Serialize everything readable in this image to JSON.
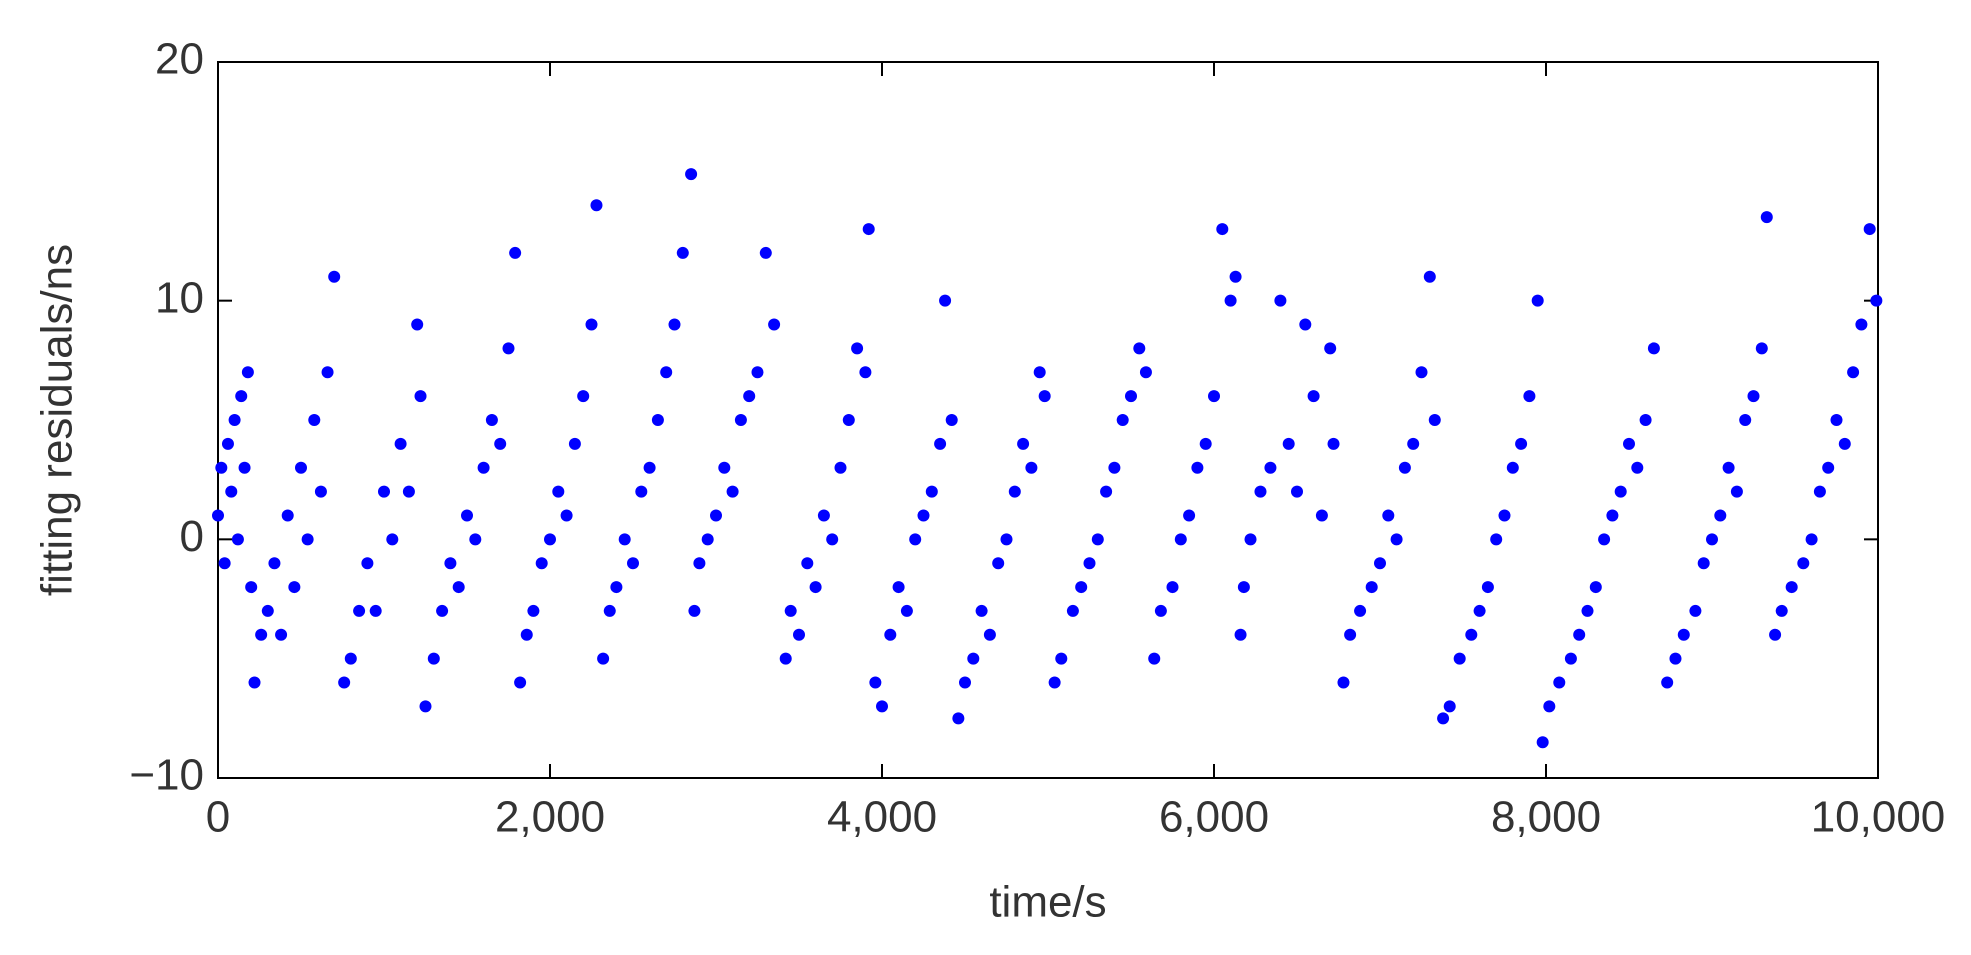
{
  "chart_data": {
    "type": "scatter",
    "xlabel": "time/s",
    "ylabel": "fitting residuals/ns",
    "color": "#0000ff",
    "xlim": [
      0,
      10000
    ],
    "ylim": [
      -10,
      20
    ],
    "xticks": [
      0,
      {
        "value": 2000,
        "label": "2,000"
      },
      {
        "value": 4000,
        "label": "4,000"
      },
      {
        "value": 6000,
        "label": "6,000"
      },
      {
        "value": 8000,
        "label": "8,000"
      },
      {
        "value": 10000,
        "label": "10,000"
      }
    ],
    "yticks": [
      {
        "value": -10,
        "label": "−10"
      },
      0,
      10,
      20
    ],
    "x": [
      0,
      20,
      40,
      60,
      80,
      100,
      120,
      140,
      160,
      180,
      200,
      220,
      260,
      300,
      340,
      380,
      420,
      460,
      500,
      540,
      580,
      620,
      660,
      700,
      760,
      800,
      850,
      900,
      950,
      1000,
      1050,
      1100,
      1150,
      1200,
      1220,
      1250,
      1300,
      1350,
      1400,
      1450,
      1500,
      1550,
      1600,
      1650,
      1700,
      1750,
      1790,
      1820,
      1860,
      1900,
      1950,
      2000,
      2050,
      2100,
      2150,
      2200,
      2250,
      2280,
      2320,
      2360,
      2400,
      2450,
      2500,
      2550,
      2600,
      2650,
      2700,
      2750,
      2800,
      2850,
      2870,
      2900,
      2950,
      3000,
      3050,
      3100,
      3150,
      3200,
      3250,
      3300,
      3350,
      3420,
      3450,
      3500,
      3550,
      3600,
      3650,
      3700,
      3750,
      3800,
      3850,
      3900,
      3920,
      3960,
      4000,
      4050,
      4100,
      4150,
      4200,
      4250,
      4300,
      4350,
      4380,
      4420,
      4460,
      4500,
      4550,
      4600,
      4650,
      4700,
      4750,
      4800,
      4850,
      4900,
      4950,
      4980,
      5040,
      5080,
      5150,
      5200,
      5250,
      5300,
      5350,
      5400,
      5450,
      5500,
      5550,
      5590,
      5640,
      5680,
      5750,
      5800,
      5850,
      5900,
      5950,
      6000,
      6050,
      6100,
      6130,
      6160,
      6180,
      6220,
      6280,
      6340,
      6400,
      6450,
      6500,
      6550,
      6600,
      6650,
      6700,
      6720,
      6780,
      6820,
      6880,
      6950,
      7000,
      7050,
      7100,
      7150,
      7200,
      7250,
      7300,
      7330,
      7380,
      7420,
      7480,
      7550,
      7600,
      7650,
      7700,
      7750,
      7800,
      7850,
      7900,
      7950,
      7980,
      8020,
      8080,
      8150,
      8200,
      8250,
      8300,
      8350,
      8400,
      8450,
      8500,
      8550,
      8600,
      8650,
      8730,
      8780,
      8830,
      8900,
      8950,
      9000,
      9050,
      9100,
      9150,
      9200,
      9250,
      9300,
      9330,
      9380,
      9420,
      9480,
      9550,
      9600,
      9650,
      9700,
      9750,
      9800,
      9850,
      9900,
      9950,
      9990
    ],
    "values": [
      1,
      3,
      -1,
      4,
      2,
      5,
      0,
      6,
      3,
      7,
      -2,
      -6,
      -4,
      -3,
      -1,
      -4,
      1,
      -2,
      3,
      0,
      5,
      2,
      7,
      11,
      -6,
      -5,
      -3,
      -1,
      -3,
      2,
      0,
      4,
      2,
      9,
      6,
      -7,
      -5,
      -3,
      -1,
      -2,
      1,
      0,
      3,
      5,
      4,
      8,
      12,
      -6,
      -4,
      -3,
      -1,
      0,
      2,
      1,
      4,
      6,
      9,
      14,
      -5,
      -3,
      -2,
      0,
      -1,
      2,
      3,
      5,
      7,
      9,
      12,
      15.3,
      -3,
      -1,
      0,
      1,
      3,
      2,
      5,
      6,
      7,
      12,
      9,
      -5,
      -3,
      -4,
      -1,
      -2,
      1,
      0,
      3,
      5,
      8,
      7,
      13,
      -6,
      -7,
      -4,
      -2,
      -3,
      0,
      1,
      2,
      4,
      10,
      5,
      -7.5,
      -6,
      -5,
      -3,
      -4,
      -1,
      0,
      2,
      4,
      3,
      7,
      6,
      -6,
      -5,
      -3,
      -2,
      -1,
      0,
      2,
      3,
      5,
      6,
      8,
      7,
      -5,
      -3,
      -2,
      0,
      1,
      3,
      4,
      6,
      13,
      10,
      11,
      -4,
      -2,
      0,
      2,
      3,
      10,
      4,
      2,
      9,
      6,
      1,
      8,
      4,
      -6,
      -4,
      -3,
      -2,
      -1,
      1,
      0,
      3,
      4,
      7,
      11,
      5,
      -7.5,
      -7,
      -5,
      -4,
      -3,
      -2,
      0,
      1,
      3,
      4,
      6,
      10,
      -8.5,
      -7,
      -6,
      -5,
      -4,
      -3,
      -2,
      0,
      1,
      2,
      4,
      3,
      5,
      8,
      -6,
      -5,
      -4,
      -3,
      -1,
      0,
      1,
      3,
      2,
      5,
      6,
      8,
      13.5,
      -4,
      -3,
      -2,
      -1,
      0,
      2,
      3,
      5,
      4,
      7,
      9,
      13,
      10
    ]
  }
}
